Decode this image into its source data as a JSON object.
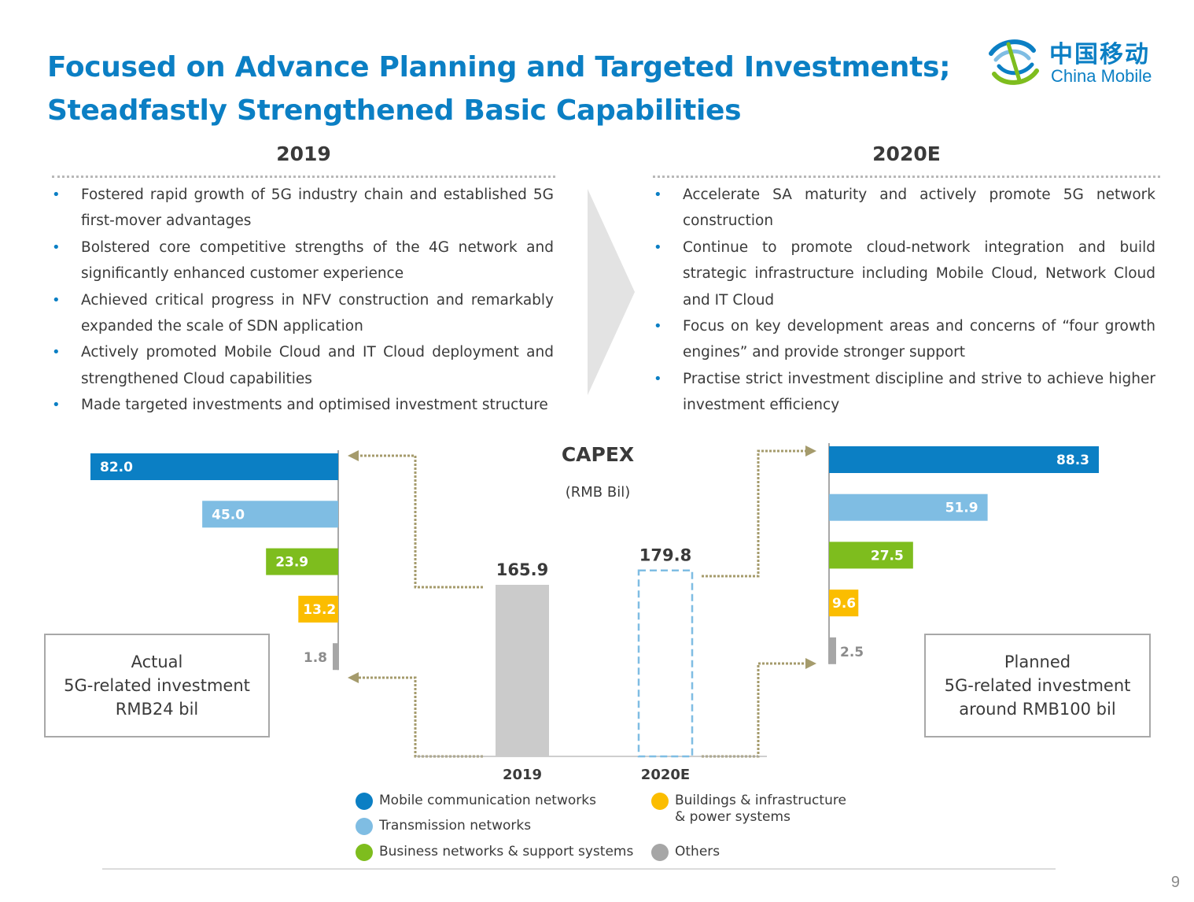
{
  "title": {
    "line1": "Focused on Advance Planning and Targeted Investments;",
    "line2": "Steadfastly Strengthened Basic Capabilities"
  },
  "logo": {
    "cn": "中国移动",
    "en": "China Mobile"
  },
  "left": {
    "heading": "2019",
    "bullets": [
      "Fostered rapid growth of 5G industry chain and established 5G first-mover advantages",
      "Bolstered core competitive strengths of the 4G network and significantly enhanced customer experience",
      "Achieved critical progress in NFV construction and remarkably expanded the scale of SDN application",
      "Actively promoted Mobile Cloud and IT Cloud deployment and strengthened Cloud capabilities",
      "Made targeted investments and optimised investment structure"
    ]
  },
  "right": {
    "heading": "2020E",
    "bullets": [
      "Accelerate SA maturity and actively promote 5G network construction",
      "Continue to promote cloud-network integration and build strategic infrastructure including Mobile Cloud, Network Cloud and IT Cloud",
      "Focus on key development areas and concerns of “four growth engines” and provide stronger support",
      "Practise strict investment discipline and strive to achieve higher investment efficiency"
    ]
  },
  "capex": {
    "title": "CAPEX",
    "unit": "(RMB Bil)"
  },
  "boxes": {
    "actual": [
      "Actual",
      "5G-related investment",
      "RMB24 bil"
    ],
    "planned": [
      "Planned",
      "5G-related investment",
      "around RMB100 bil"
    ]
  },
  "legend": {
    "mobile": "Mobile communication networks",
    "transmission": "Transmission networks",
    "business": "Business networks & support systems",
    "buildings_1": "Buildings & infrastructure",
    "buildings_2": "& power systems",
    "others": "Others"
  },
  "colors": {
    "mobile": "#0b7fc4",
    "transmission": "#7fbde3",
    "business": "#7ebd1e",
    "buildings": "#fbbd00",
    "others": "#a6a6a6",
    "total_bar": "#cbcbcb",
    "total_outline": "#7fbde3",
    "connector": "#a59b6c",
    "title": "#0b7fc4"
  },
  "page_number": "9",
  "chart_data": [
    {
      "type": "bar",
      "categories": [
        "2019",
        "2020E"
      ],
      "values": [
        165.9,
        179.8
      ],
      "title": "CAPEX",
      "ylabel": "(RMB Bil)",
      "notes": [
        "2020E shown as dashed outline"
      ]
    },
    {
      "type": "bar",
      "orientation": "horizontal",
      "title": "2019",
      "categories": [
        "Mobile communication networks",
        "Transmission networks",
        "Business networks & support systems",
        "Buildings & infrastructure & power systems",
        "Others"
      ],
      "values": [
        82.0,
        45.0,
        23.9,
        13.2,
        1.8
      ],
      "labels": [
        "82.0",
        "45.0",
        "23.9",
        "13.2",
        "1.8"
      ]
    },
    {
      "type": "bar",
      "orientation": "horizontal",
      "title": "2020E",
      "categories": [
        "Mobile communication networks",
        "Transmission networks",
        "Business networks & support systems",
        "Buildings & infrastructure & power systems",
        "Others"
      ],
      "values": [
        88.3,
        51.9,
        27.5,
        9.6,
        2.5
      ],
      "labels": [
        "88.3",
        "51.9",
        "27.5",
        "9.6",
        "2.5"
      ]
    }
  ]
}
